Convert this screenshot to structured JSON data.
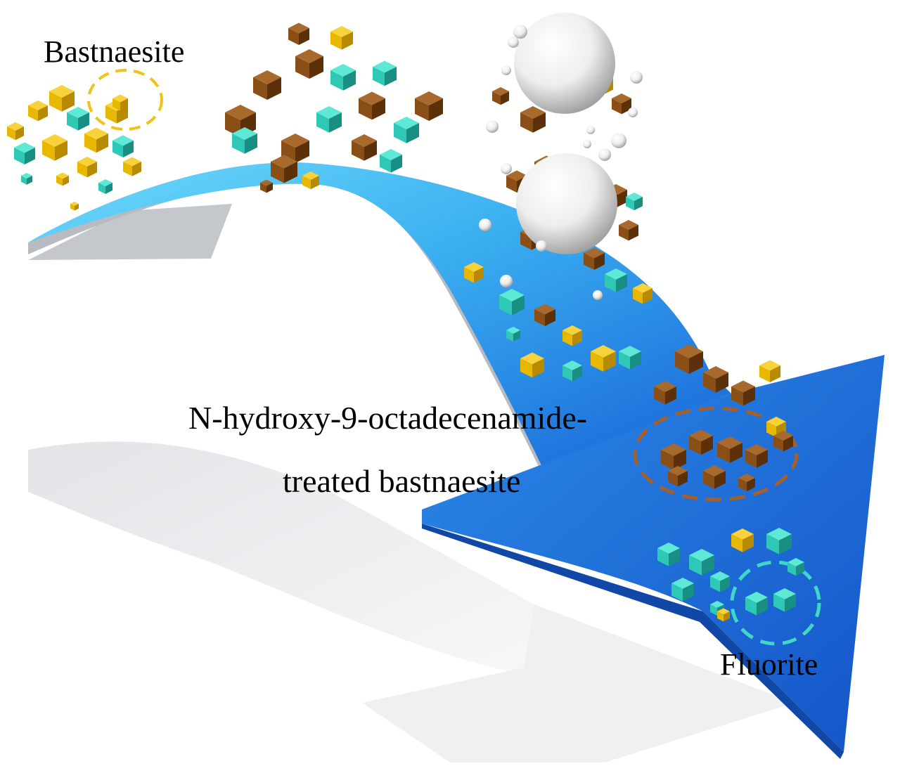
{
  "labels": {
    "bastnaesite": "Bastnaesite",
    "treated_line1": "N-hydroxy-9-octadecenamide-",
    "treated_line2": "treated bastnaesite",
    "fluorite": "Fluorite"
  },
  "colors": {
    "background": "#ffffff",
    "arrow_light": "#5fd3f7",
    "arrow_dark": "#1d78e0",
    "arrow_edge": "#b8bcc2",
    "shadow": "#e9ebee",
    "bastnaesite_particle": "#e8b800",
    "fluorite_particle": "#2fc7b5",
    "treated_particle": "#8a4f17",
    "bubble": "#ffffff",
    "bastnaesite_ring": "#f0c21a",
    "treated_ring": "#a5602a",
    "fluorite_ring": "#3fd8c6"
  }
}
